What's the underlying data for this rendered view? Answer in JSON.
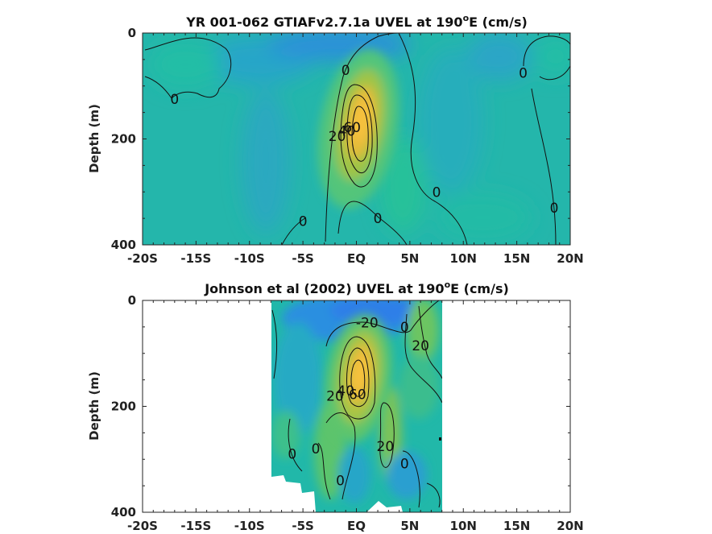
{
  "chart_data": [
    {
      "type": "heatmap",
      "title": "YR 001-062 GTIAFv2.7.1a UVEL at 190",
      "title_sup": "o",
      "title_tail": "E (cm/s)",
      "ylabel": "Depth (m)",
      "xlabel": "",
      "xlim": [
        -20,
        20
      ],
      "ylim": [
        400,
        0
      ],
      "x_ticks": [
        -20,
        -15,
        -10,
        -5,
        0,
        5,
        10,
        15,
        20
      ],
      "x_tick_labels": [
        "-20S",
        "-15S",
        "-10S",
        "-5S",
        "EQ",
        "5N",
        "10N",
        "15N",
        "20N"
      ],
      "y_ticks": [
        0,
        200,
        400
      ],
      "y_tick_labels": [
        "0",
        "200",
        "400"
      ],
      "undercurrent_core": {
        "lat": 0,
        "depth": 160,
        "max_speed": 100
      },
      "contour_labels": [
        {
          "text": "0",
          "lat": -1.0,
          "depth": 70
        },
        {
          "text": "0",
          "lat": -17,
          "depth": 125
        },
        {
          "text": "20",
          "lat": -1.8,
          "depth": 195
        },
        {
          "text": "40",
          "lat": -0.9,
          "depth": 185
        },
        {
          "text": "60",
          "lat": -0.4,
          "depth": 178
        },
        {
          "text": "0",
          "lat": 15.6,
          "depth": 75
        },
        {
          "text": "0",
          "lat": 7.5,
          "depth": 300
        },
        {
          "text": "0",
          "lat": 18.5,
          "depth": 330
        },
        {
          "text": "0",
          "lat": -5.0,
          "depth": 355
        },
        {
          "text": "0",
          "lat": 2.0,
          "depth": 350
        }
      ]
    },
    {
      "type": "heatmap",
      "title": "Johnson et al (2002) UVEL at 190",
      "title_sup": "o",
      "title_tail": "E (cm/s)",
      "ylabel": "Depth (m)",
      "xlabel": "",
      "xlim": [
        -20,
        20
      ],
      "ylim": [
        400,
        0
      ],
      "data_lat_range": [
        -8,
        8
      ],
      "x_ticks": [
        -20,
        -15,
        -10,
        -5,
        0,
        5,
        10,
        15,
        20
      ],
      "x_tick_labels": [
        "-20S",
        "-15S",
        "-10S",
        "-5S",
        "EQ",
        "5N",
        "10N",
        "15N",
        "20N"
      ],
      "y_ticks": [
        0,
        200,
        400
      ],
      "y_tick_labels": [
        "0",
        "200",
        "400"
      ],
      "undercurrent_core": {
        "lat": 0,
        "depth": 145,
        "max_speed": 100
      },
      "contour_labels": [
        {
          "text": "-20",
          "lat": 1.0,
          "depth": 42
        },
        {
          "text": "0",
          "lat": 4.5,
          "depth": 50
        },
        {
          "text": "20",
          "lat": 6.0,
          "depth": 85
        },
        {
          "text": "20",
          "lat": -2.0,
          "depth": 180
        },
        {
          "text": "40",
          "lat": -1.0,
          "depth": 170
        },
        {
          "text": "60",
          "lat": 0.1,
          "depth": 177
        },
        {
          "text": "20",
          "lat": 2.7,
          "depth": 275
        },
        {
          "text": "0",
          "lat": -3.8,
          "depth": 280
        },
        {
          "text": "0",
          "lat": -6.0,
          "depth": 290
        },
        {
          "text": "0",
          "lat": 4.5,
          "depth": 308
        },
        {
          "text": "0",
          "lat": -1.5,
          "depth": 340
        }
      ]
    }
  ]
}
